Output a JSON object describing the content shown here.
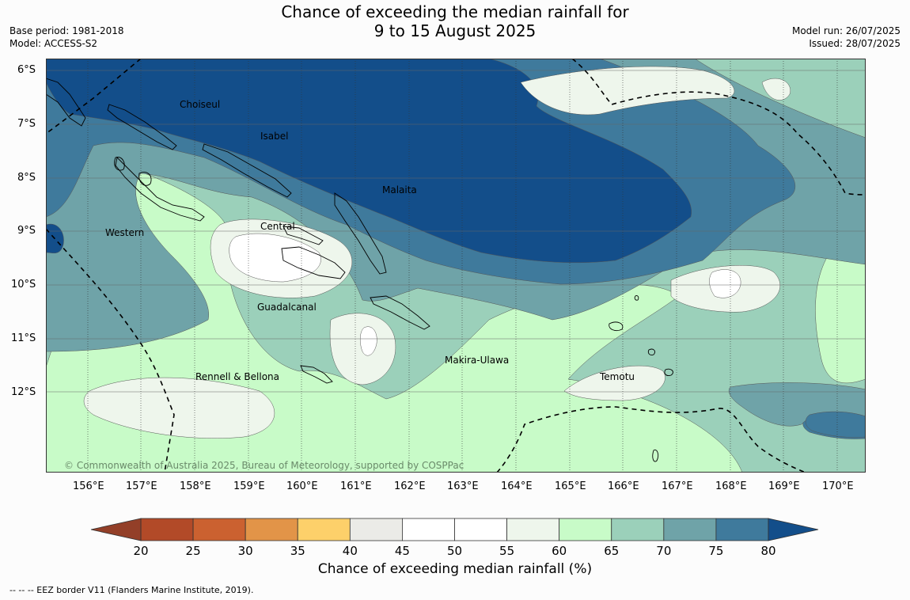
{
  "header": {
    "title_line1": "Chance of exceeding the median rainfall for",
    "title_line2": "9 to 15 August 2025",
    "base_period": "Base period: 1981-2018",
    "model": "Model: ACCESS-S2",
    "model_run": "Model run: 26/07/2025",
    "issued": "Issued: 28/07/2025"
  },
  "map": {
    "lat_labels": [
      "6°S",
      "7°S",
      "8°S",
      "9°S",
      "10°S",
      "11°S",
      "12°S"
    ],
    "lon_labels": [
      "156°E",
      "157°E",
      "158°E",
      "159°E",
      "160°E",
      "161°E",
      "162°E",
      "163°E",
      "164°E",
      "165°E",
      "166°E",
      "167°E",
      "168°E",
      "169°E",
      "170°E"
    ],
    "provinces": [
      "Choiseul",
      "Isabel",
      "Malaita",
      "Western",
      "Central",
      "Guadalcanal",
      "Makira-Ulawa",
      "Rennell & Bellona",
      "Temotu"
    ],
    "copyright": "© Commonwealth of Australia 2025, Bureau of Meteorology, supported by COSPPac"
  },
  "colorbar": {
    "ticks": [
      "20",
      "25",
      "30",
      "35",
      "40",
      "45",
      "50",
      "55",
      "60",
      "65",
      "70",
      "75",
      "80"
    ],
    "colors": [
      "#b24a28",
      "#cb6130",
      "#e29448",
      "#fdd06a",
      "#ebebe7",
      "#ffffff",
      "#ffffff",
      "#eef6ec",
      "#c8fbc8",
      "#9bd0ba",
      "#6fa3a8",
      "#3f7a9c"
    ],
    "low_color": "#933f28",
    "high_color": "#134e8a",
    "title": "Chance of exceeding median rainfall (%)"
  },
  "footer": {
    "eez_note": "--  --  -- EEZ border V11 (Flanders Marine Institute, 2019)."
  }
}
